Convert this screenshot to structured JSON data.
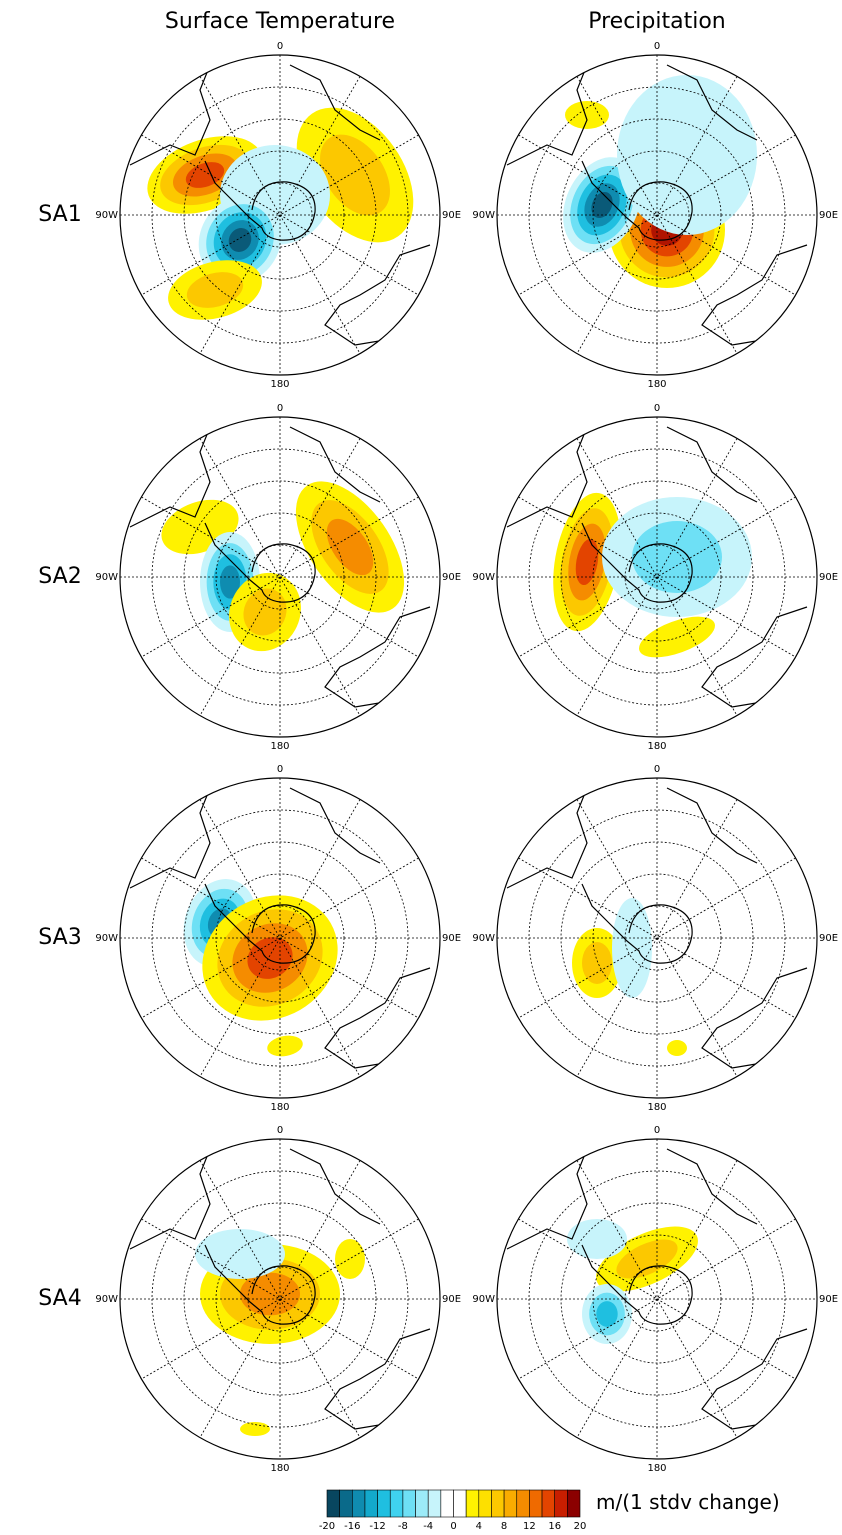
{
  "columns": [
    "Surface Temperature",
    "Precipitation"
  ],
  "rows": [
    "SA1",
    "SA2",
    "SA3",
    "SA4"
  ],
  "map_labels": {
    "top": "0",
    "left": "90W",
    "right": "90E",
    "bottom": "180"
  },
  "colorbar": {
    "ticks": [
      -20,
      -16,
      -12,
      -8,
      -4,
      0,
      4,
      8,
      12,
      16,
      20
    ],
    "colors": [
      "#08465f",
      "#0a6a8a",
      "#0f8cb0",
      "#13a9cc",
      "#1fbfe0",
      "#3fd2ef",
      "#6ee0f5",
      "#9cebf8",
      "#c7f4fb",
      "#ffffff",
      "#ffffff",
      "#fff200",
      "#fde000",
      "#fcc800",
      "#f9ac00",
      "#f58c00",
      "#ef6a00",
      "#e34400",
      "#c81e00",
      "#8b0000"
    ],
    "label": "m/(1 stdv change)"
  }
}
